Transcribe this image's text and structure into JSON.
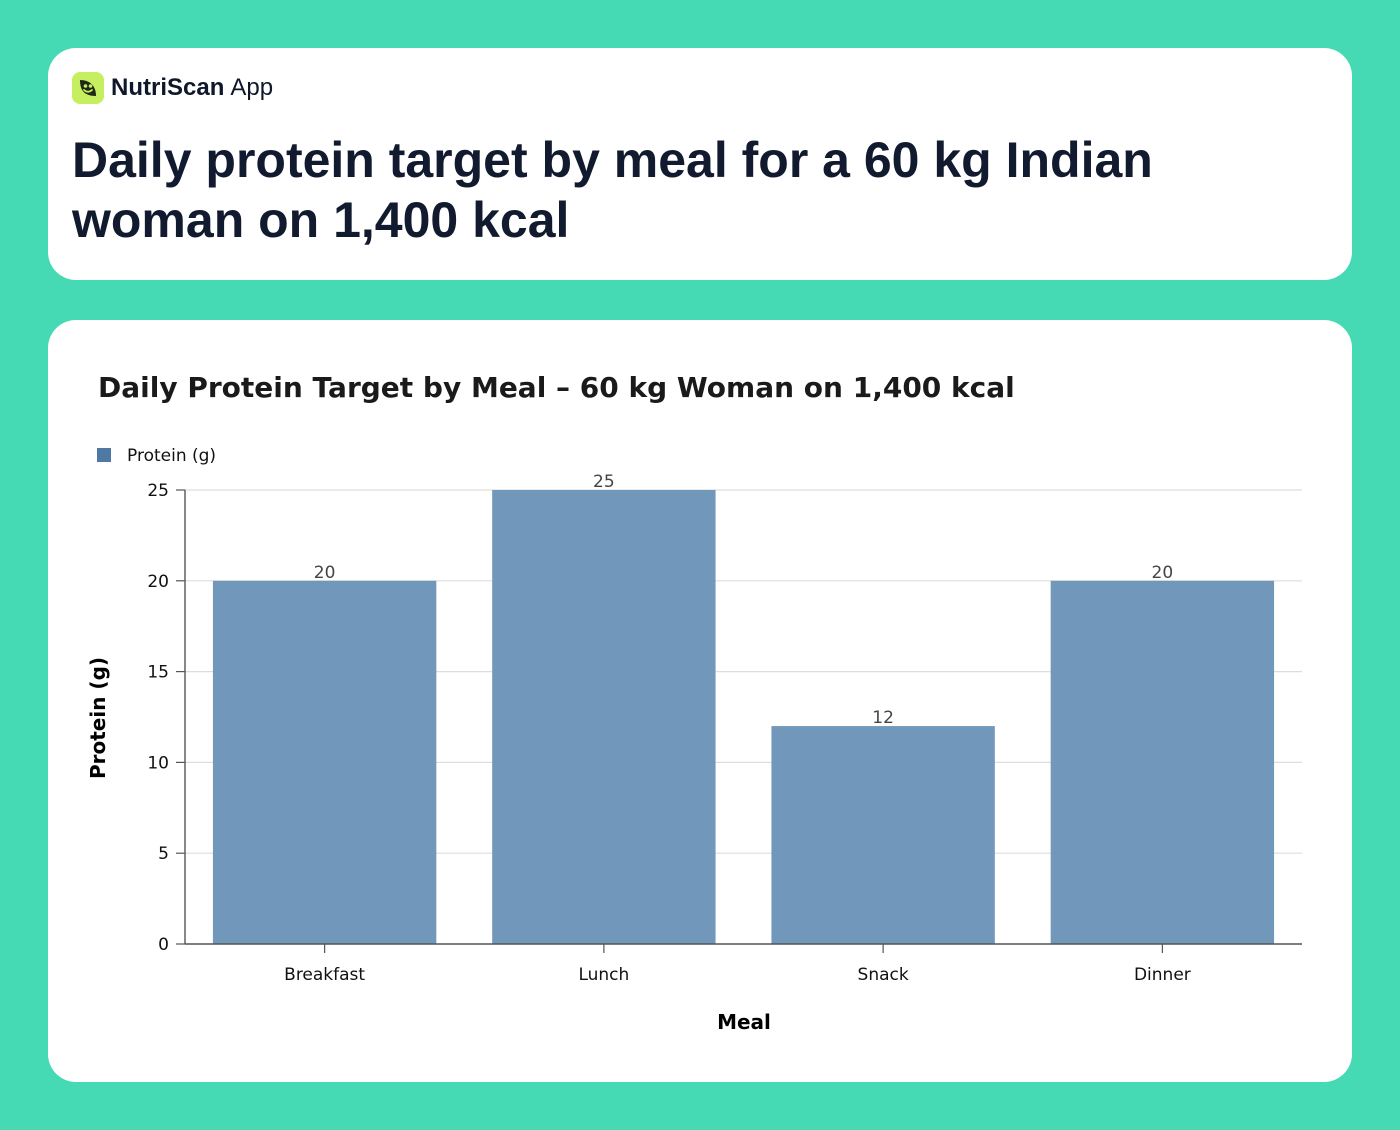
{
  "brand": {
    "name": "NutriScan",
    "suffix": "App",
    "logo_icon": "leaf-face-icon",
    "logo_color": "#c7ee5e"
  },
  "headline": "Daily protein target by meal for a 60 kg Indian woman on 1,400 kcal",
  "chart_data": {
    "type": "bar",
    "title": "Daily Protein Target by Meal – 60 kg Woman on 1,400 kcal",
    "categories": [
      "Breakfast",
      "Lunch",
      "Snack",
      "Dinner"
    ],
    "series": [
      {
        "name": "Protein (g)",
        "values": [
          20,
          25,
          12,
          20
        ],
        "color": "#7197bb"
      }
    ],
    "xlabel": "Meal",
    "ylabel": "Protein (g)",
    "ylim": [
      0,
      25
    ],
    "yticks": [
      0,
      5,
      10,
      15,
      20,
      25
    ],
    "data_labels": true,
    "grid": "horizontal",
    "legend": "top-left"
  },
  "colors": {
    "background": "#45d9b4",
    "card": "#ffffff",
    "legend_swatch": "#4f79a4"
  }
}
